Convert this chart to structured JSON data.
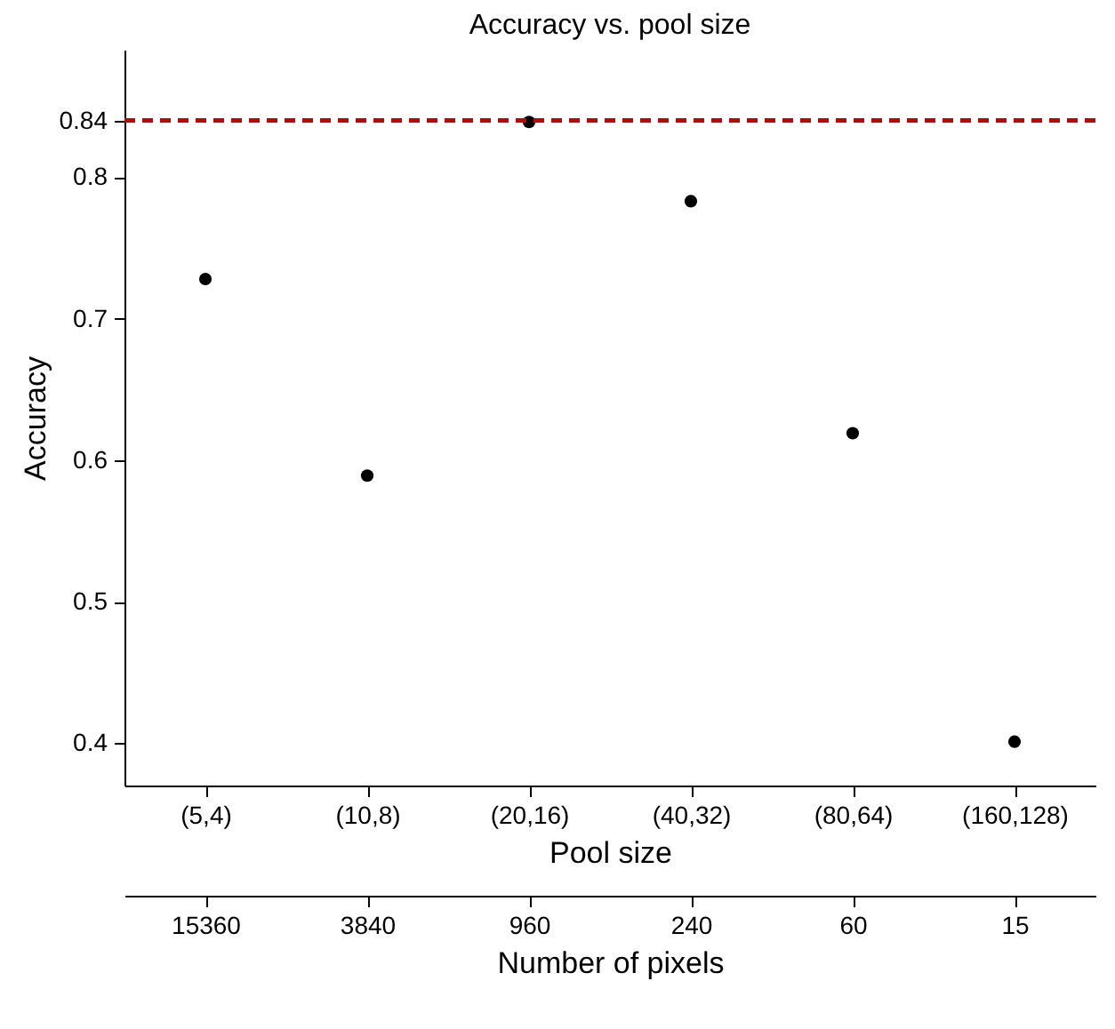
{
  "chart_data": {
    "type": "scatter",
    "title": "Accuracy vs. pool size",
    "xlabel": "Pool size",
    "x2label": "Number of pixels",
    "ylabel": "Accuracy",
    "categories": [
      "(5,4)",
      "(10,8)",
      "(20,16)",
      "(40,32)",
      "(80,64)",
      "(160,128)"
    ],
    "series": [
      {
        "color": "#000000",
        "values": [
          0.728,
          0.589,
          0.839,
          0.783,
          0.619,
          0.401
        ]
      }
    ],
    "annotations": [
      {
        "text": "15360",
        "x": "(5,4)"
      },
      {
        "text": "3840",
        "x": "(10,8)"
      },
      {
        "text": "960",
        "x": "(20,16)"
      },
      {
        "text": "240",
        "x": "(40,32)"
      },
      {
        "text": "60",
        "x": "(80,64)"
      },
      {
        "text": "15",
        "x": "(160,128)"
      }
    ],
    "ylim": [
      0.37,
      0.89
    ],
    "yticks": [
      0.4,
      0.5,
      0.6,
      0.7,
      0.8,
      0.84
    ],
    "ref_lines": [
      {
        "axis": "y",
        "value": 0.84,
        "color": "#cc0000",
        "line_style": "dashed"
      }
    ],
    "marker": "circle",
    "grid": false
  }
}
